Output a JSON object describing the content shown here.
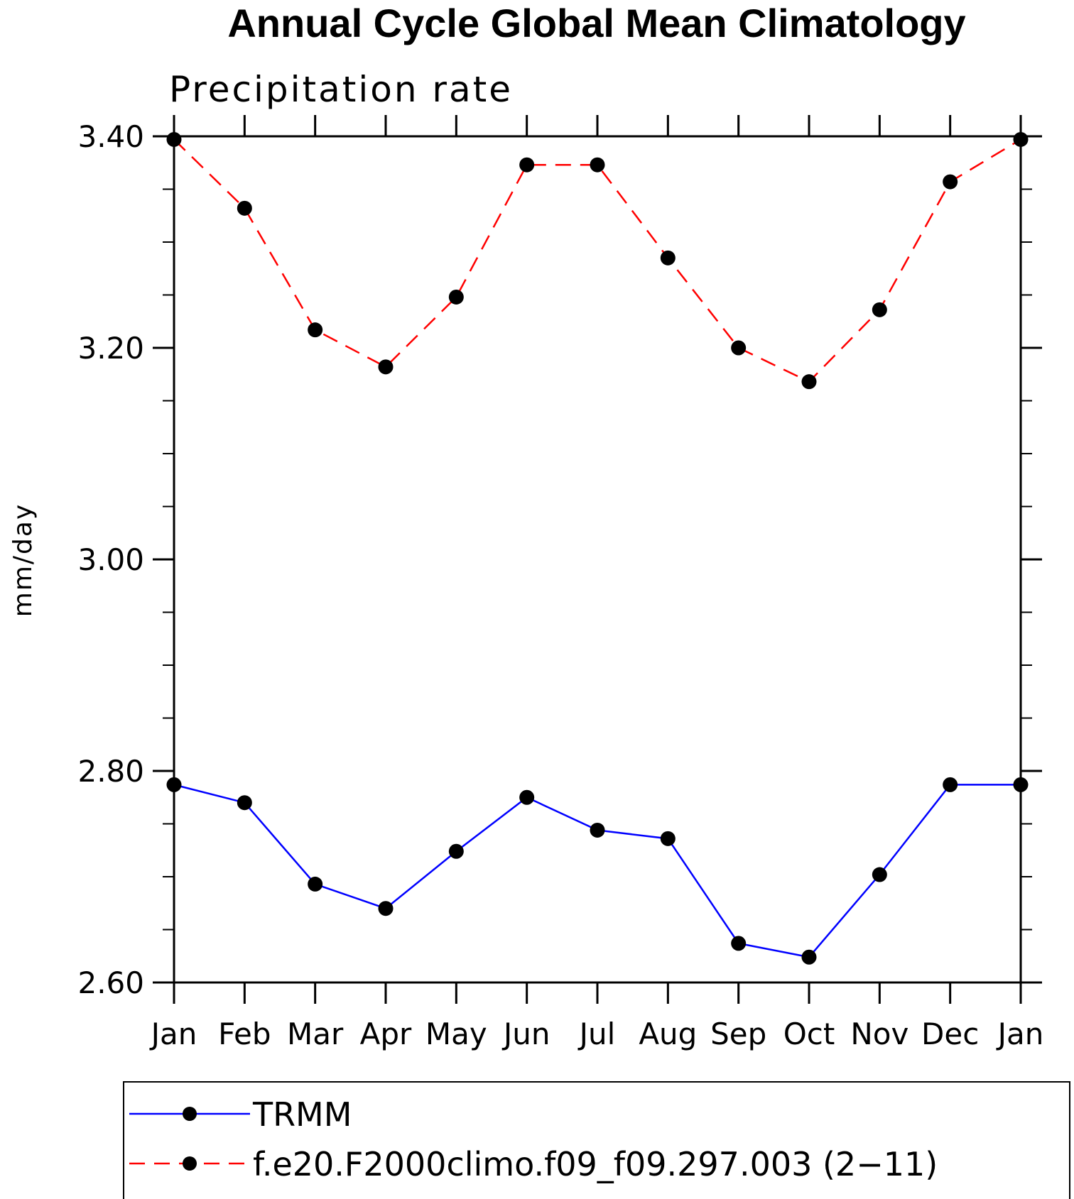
{
  "chart_data": {
    "type": "line",
    "title": "Annual Cycle Global Mean Climatology",
    "subtitle": "Precipitation rate",
    "xlabel": "",
    "ylabel": "mm/day",
    "categories": [
      "Jan",
      "Feb",
      "Mar",
      "Apr",
      "May",
      "Jun",
      "Jul",
      "Aug",
      "Sep",
      "Oct",
      "Nov",
      "Dec",
      "Jan"
    ],
    "ylim": [
      2.6,
      3.4
    ],
    "yticks": [
      2.6,
      2.8,
      3.0,
      3.2,
      3.4
    ],
    "ytick_labels": [
      "2.60",
      "2.80",
      "3.00",
      "3.20",
      "3.40"
    ],
    "grid": false,
    "legend_position": "bottom",
    "series": [
      {
        "name": "TRMM",
        "color": "#0000ff",
        "style": "solid",
        "marker": "circle",
        "values": [
          2.787,
          2.77,
          2.693,
          2.67,
          2.724,
          2.775,
          2.744,
          2.736,
          2.637,
          2.624,
          2.702,
          2.787,
          2.787
        ]
      },
      {
        "name": "f.e20.F2000climo.f09_f09.297.003 (2−11)",
        "color": "#ff0000",
        "style": "dashed",
        "marker": "circle",
        "values": [
          3.397,
          3.332,
          3.217,
          3.182,
          3.248,
          3.373,
          3.373,
          3.285,
          3.2,
          3.168,
          3.236,
          3.357,
          3.397
        ]
      }
    ]
  }
}
